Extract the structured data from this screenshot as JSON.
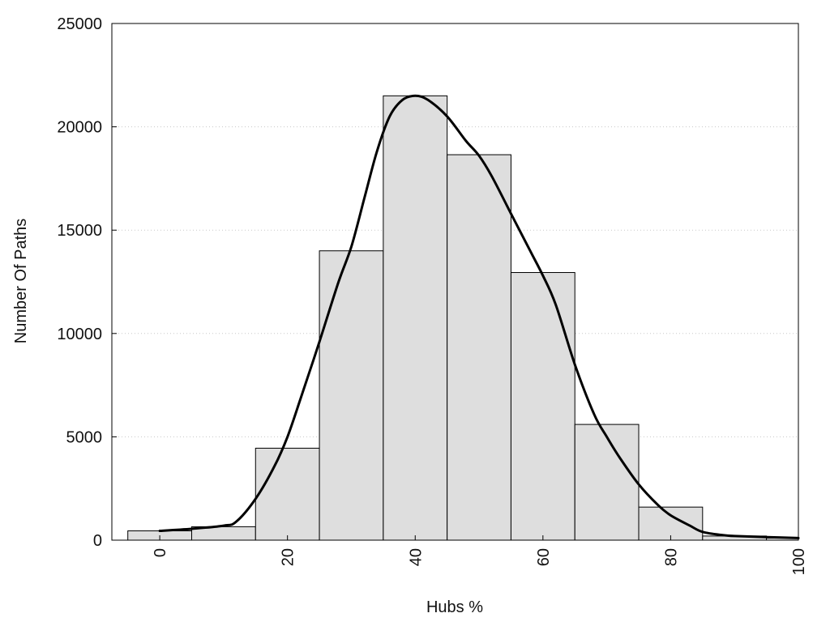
{
  "chart_data": {
    "type": "bar",
    "xlabel": "Hubs %",
    "ylabel": "Number Of Paths",
    "xlim": [
      -7.5,
      100
    ],
    "ylim": [
      0,
      25000
    ],
    "xticks": [
      0,
      20,
      40,
      60,
      80,
      100
    ],
    "xtick_labels": [
      "0",
      "20",
      "40",
      "60",
      "80",
      "100"
    ],
    "yticks": [
      0,
      5000,
      10000,
      15000,
      20000,
      25000
    ],
    "ytick_labels": [
      "0",
      "5000",
      "10000",
      "15000",
      "20000",
      "25000"
    ],
    "grid": "horizontal dotted",
    "bin_width": 10,
    "bins": [
      {
        "center": 0,
        "value": 450
      },
      {
        "center": 10,
        "value": 650
      },
      {
        "center": 20,
        "value": 4450
      },
      {
        "center": 30,
        "value": 14000
      },
      {
        "center": 40,
        "value": 21500
      },
      {
        "center": 50,
        "value": 18650
      },
      {
        "center": 60,
        "value": 12950
      },
      {
        "center": 70,
        "value": 5600
      },
      {
        "center": 80,
        "value": 1600
      },
      {
        "center": 90,
        "value": 200
      },
      {
        "center": 100,
        "value": 100
      }
    ],
    "curve": [
      [
        0,
        450
      ],
      [
        5,
        550
      ],
      [
        10,
        700
      ],
      [
        12,
        900
      ],
      [
        15,
        2000
      ],
      [
        18,
        3600
      ],
      [
        20,
        5000
      ],
      [
        22,
        6800
      ],
      [
        25,
        9600
      ],
      [
        28,
        12500
      ],
      [
        30,
        14200
      ],
      [
        32,
        16500
      ],
      [
        34,
        18800
      ],
      [
        36,
        20500
      ],
      [
        38,
        21300
      ],
      [
        40,
        21500
      ],
      [
        42,
        21300
      ],
      [
        45,
        20500
      ],
      [
        48,
        19300
      ],
      [
        50,
        18600
      ],
      [
        52,
        17600
      ],
      [
        55,
        15800
      ],
      [
        58,
        14000
      ],
      [
        60,
        12800
      ],
      [
        62,
        11400
      ],
      [
        65,
        8500
      ],
      [
        68,
        6100
      ],
      [
        70,
        5000
      ],
      [
        72,
        4000
      ],
      [
        75,
        2700
      ],
      [
        78,
        1700
      ],
      [
        80,
        1200
      ],
      [
        83,
        700
      ],
      [
        85,
        400
      ],
      [
        88,
        250
      ],
      [
        90,
        200
      ],
      [
        95,
        150
      ],
      [
        100,
        100
      ]
    ],
    "colors": {
      "bar_fill": "#dedede",
      "bar_stroke": "#000000",
      "curve": "#000000",
      "grid": "#c8c8c8",
      "frame": "#000000"
    }
  }
}
